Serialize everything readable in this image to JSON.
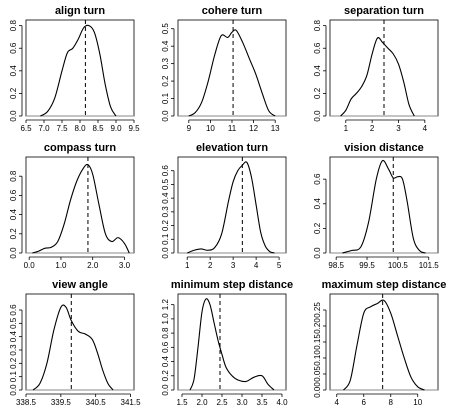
{
  "chart_data": [
    {
      "type": "line",
      "title": "align turn",
      "xlim": [
        6.5,
        9.5
      ],
      "ylim": [
        0,
        0.85
      ],
      "xticks": [
        "6.5",
        "7.0",
        "7.5",
        "8.0",
        "8.5",
        "9.0",
        "9.5"
      ],
      "yticks": [
        "0.0",
        "0.2",
        "0.4",
        "0.6",
        "0.8"
      ],
      "x": [
        6.9,
        7.1,
        7.3,
        7.5,
        7.65,
        7.8,
        7.95,
        8.1,
        8.25,
        8.4,
        8.55,
        8.7,
        8.85,
        9.0
      ],
      "y": [
        0.0,
        0.04,
        0.16,
        0.4,
        0.56,
        0.6,
        0.68,
        0.78,
        0.8,
        0.74,
        0.55,
        0.28,
        0.08,
        0.0
      ],
      "vline": 8.15
    },
    {
      "type": "line",
      "title": "cohere turn",
      "xlim": [
        8.5,
        13.5
      ],
      "ylim": [
        0,
        0.55
      ],
      "xticks": [
        "9",
        "10",
        "11",
        "12",
        "13"
      ],
      "yticks": [
        "0.0",
        "0.1",
        "0.2",
        "0.3",
        "0.4",
        "0.5"
      ],
      "x": [
        9.0,
        9.3,
        9.6,
        9.9,
        10.2,
        10.5,
        10.8,
        11.0,
        11.2,
        11.5,
        11.8,
        12.1,
        12.4,
        12.7,
        13.0
      ],
      "y": [
        0.0,
        0.02,
        0.08,
        0.2,
        0.35,
        0.46,
        0.45,
        0.48,
        0.49,
        0.42,
        0.33,
        0.24,
        0.13,
        0.03,
        0.0
      ],
      "vline": 11.05
    },
    {
      "type": "line",
      "title": "separation turn",
      "xlim": [
        0.4,
        4.5
      ],
      "ylim": [
        0,
        0.85
      ],
      "xticks": [
        "1",
        "2",
        "3",
        "4"
      ],
      "yticks": [
        "0.0",
        "0.2",
        "0.4",
        "0.6",
        "0.8"
      ],
      "x": [
        0.8,
        1.0,
        1.2,
        1.4,
        1.6,
        1.8,
        2.0,
        2.2,
        2.4,
        2.6,
        2.8,
        3.0,
        3.2,
        3.4,
        3.6
      ],
      "y": [
        0.0,
        0.05,
        0.15,
        0.2,
        0.26,
        0.36,
        0.55,
        0.69,
        0.65,
        0.6,
        0.55,
        0.46,
        0.3,
        0.1,
        0.0
      ],
      "vline": 2.45
    },
    {
      "type": "line",
      "title": "compass turn",
      "xlim": [
        -0.1,
        3.3
      ],
      "ylim": [
        0,
        1.0
      ],
      "xticks": [
        "0.0",
        "1.0",
        "2.0",
        "3.0"
      ],
      "yticks": [
        "0.0",
        "0.2",
        "0.4",
        "0.6",
        "0.8"
      ],
      "x": [
        0.1,
        0.3,
        0.5,
        0.7,
        0.9,
        1.1,
        1.3,
        1.5,
        1.7,
        1.85,
        2.0,
        2.2,
        2.4,
        2.6,
        2.8,
        3.0,
        3.15
      ],
      "y": [
        0.0,
        0.02,
        0.05,
        0.06,
        0.12,
        0.3,
        0.55,
        0.75,
        0.88,
        0.92,
        0.82,
        0.5,
        0.2,
        0.12,
        0.16,
        0.1,
        0.0
      ],
      "vline": 1.85
    },
    {
      "type": "line",
      "title": "elevation turn",
      "xlim": [
        0.6,
        5.3
      ],
      "ylim": [
        0,
        0.7
      ],
      "xticks": [
        "1",
        "2",
        "3",
        "4",
        "5"
      ],
      "yticks": [
        "0.0",
        "0.1",
        "0.2",
        "0.3",
        "0.4",
        "0.5",
        "0.6"
      ],
      "x": [
        1.0,
        1.3,
        1.6,
        1.9,
        2.2,
        2.5,
        2.8,
        3.0,
        3.2,
        3.4,
        3.6,
        3.8,
        4.0,
        4.2,
        4.4,
        4.6,
        4.8
      ],
      "y": [
        0.0,
        0.02,
        0.03,
        0.02,
        0.04,
        0.14,
        0.38,
        0.52,
        0.6,
        0.64,
        0.66,
        0.55,
        0.35,
        0.15,
        0.05,
        0.01,
        0.0
      ],
      "vline": 3.4
    },
    {
      "type": "line",
      "title": "vision distance",
      "xlim": [
        98.3,
        101.8
      ],
      "ylim": [
        0,
        0.78
      ],
      "xticks": [
        "98.5",
        "99.5",
        "100.5",
        "101.5"
      ],
      "yticks": [
        "0.0",
        "0.2",
        "0.4",
        "0.6"
      ],
      "x": [
        98.7,
        99.0,
        99.3,
        99.55,
        99.8,
        100.0,
        100.2,
        100.35,
        100.5,
        100.65,
        100.8,
        101.0,
        101.2,
        101.4
      ],
      "y": [
        0.0,
        0.02,
        0.05,
        0.25,
        0.6,
        0.75,
        0.68,
        0.61,
        0.62,
        0.6,
        0.42,
        0.12,
        0.02,
        0.0
      ],
      "vline": 100.35
    },
    {
      "type": "line",
      "title": "view angle",
      "xlim": [
        338.5,
        341.6
      ],
      "ylim": [
        0,
        0.72
      ],
      "xticks": [
        "338.5",
        "339.5",
        "340.5",
        "341.5"
      ],
      "yticks": [
        "0.0",
        "0.1",
        "0.2",
        "0.3",
        "0.4",
        "0.5",
        "0.6"
      ],
      "x": [
        338.7,
        338.9,
        339.1,
        339.3,
        339.5,
        339.65,
        339.8,
        340.0,
        340.2,
        340.4,
        340.55,
        340.7,
        340.85,
        341.0
      ],
      "y": [
        0.0,
        0.05,
        0.2,
        0.45,
        0.62,
        0.62,
        0.52,
        0.44,
        0.42,
        0.38,
        0.28,
        0.15,
        0.05,
        0.0
      ],
      "vline": 339.8
    },
    {
      "type": "line",
      "title": "minimum step distance",
      "xlim": [
        1.4,
        4.1
      ],
      "ylim": [
        0,
        1.35
      ],
      "xticks": [
        "1.5",
        "2.0",
        "2.5",
        "3.0",
        "3.5",
        "4.0"
      ],
      "yticks": [
        "0.0",
        "0.2",
        "0.4",
        "0.6",
        "0.8",
        "1.0",
        "1.2"
      ],
      "x": [
        1.7,
        1.8,
        1.9,
        2.0,
        2.1,
        2.2,
        2.3,
        2.4,
        2.5,
        2.6,
        2.75,
        2.9,
        3.1,
        3.3,
        3.5,
        3.65,
        3.8
      ],
      "y": [
        0.0,
        0.15,
        0.6,
        1.1,
        1.28,
        1.2,
        0.95,
        0.7,
        0.5,
        0.32,
        0.2,
        0.14,
        0.12,
        0.18,
        0.2,
        0.08,
        0.0
      ],
      "vline": 2.45
    },
    {
      "type": "line",
      "title": "maximum step distance",
      "xlim": [
        3.5,
        11.5
      ],
      "ylim": [
        0,
        0.3
      ],
      "xticks": [
        "4",
        "6",
        "8",
        "10"
      ],
      "yticks": [
        "0.00",
        "0.05",
        "0.10",
        "0.15",
        "0.20",
        "0.25"
      ],
      "x": [
        4.5,
        5.0,
        5.5,
        6.0,
        6.5,
        7.0,
        7.5,
        8.0,
        8.5,
        9.0,
        9.5,
        10.0,
        10.5
      ],
      "y": [
        0.0,
        0.03,
        0.14,
        0.24,
        0.26,
        0.27,
        0.28,
        0.24,
        0.17,
        0.1,
        0.04,
        0.01,
        0.0
      ],
      "vline": 7.4
    }
  ]
}
